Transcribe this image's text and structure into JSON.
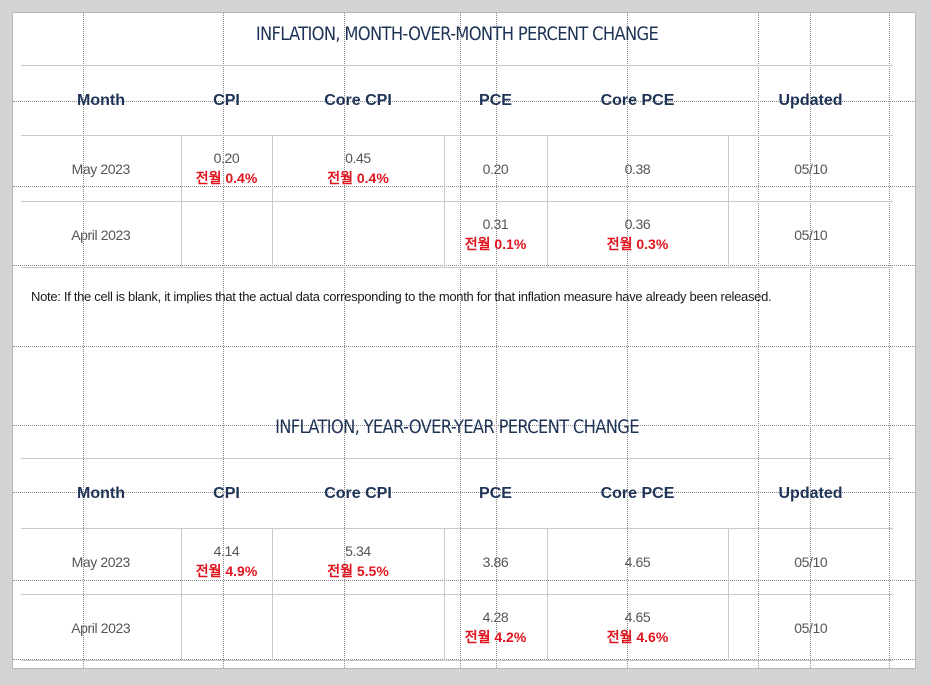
{
  "mom": {
    "title": "INFLATION, MONTH-OVER-MONTH PERCENT CHANGE",
    "headers": [
      "Month",
      "CPI",
      "Core CPI",
      "PCE",
      "Core PCE",
      "Updated"
    ],
    "rows": [
      {
        "month": "May 2023",
        "cpi": "0.20",
        "cpi_note": "전월 0.4%",
        "core_cpi": "0.45",
        "core_cpi_note": "전월 0.4%",
        "pce": "0.20",
        "pce_note": "",
        "core_pce": "0.38",
        "core_pce_note": "",
        "updated": "05/10"
      },
      {
        "month": "April 2023",
        "cpi": "",
        "cpi_note": "",
        "core_cpi": "",
        "core_cpi_note": "",
        "pce": "0.31",
        "pce_note": "전월 0.1%",
        "core_pce": "0.36",
        "core_pce_note": "전월 0.3%",
        "updated": "05/10"
      }
    ]
  },
  "note": "Note: If the cell is blank, it implies that the actual data corresponding to the month for that inflation measure have already been released.",
  "yoy": {
    "title": "INFLATION, YEAR-OVER-YEAR PERCENT CHANGE",
    "headers": [
      "Month",
      "CPI",
      "Core CPI",
      "PCE",
      "Core PCE",
      "Updated"
    ],
    "rows": [
      {
        "month": "May 2023",
        "cpi": "4.14",
        "cpi_note": "전월 4.9%",
        "core_cpi": "5.34",
        "core_cpi_note": "전월 5.5%",
        "pce": "3.86",
        "pce_note": "",
        "core_pce": "4.65",
        "core_pce_note": "",
        "updated": "05/10"
      },
      {
        "month": "April 2023",
        "cpi": "",
        "cpi_note": "",
        "core_cpi": "",
        "core_cpi_note": "",
        "pce": "4.28",
        "pce_note": "전월 4.2%",
        "core_pce": "4.65",
        "core_pce_note": "전월 4.6%",
        "updated": "05/10"
      }
    ]
  },
  "colors": {
    "heading": "#1e3356",
    "annotation": "#e0141e",
    "cell_text": "#555555",
    "rule": "#c9c9c9"
  }
}
